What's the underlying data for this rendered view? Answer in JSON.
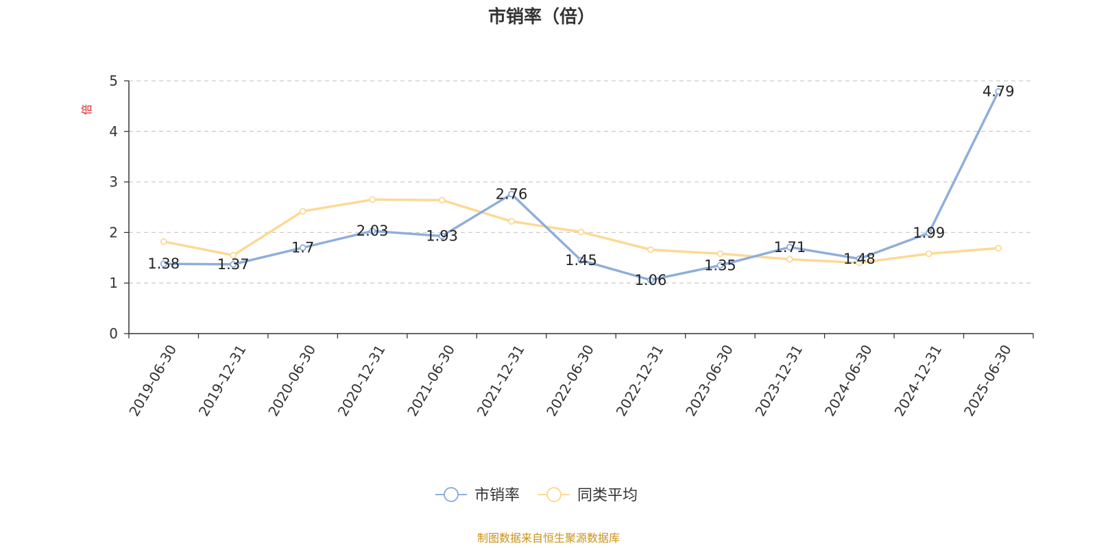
{
  "chart_data": {
    "type": "line",
    "title": "市销率（倍）",
    "ylabel": "倍",
    "xlabel": "",
    "categories": [
      "2019-06-30",
      "2019-12-31",
      "2020-06-30",
      "2020-12-31",
      "2021-06-30",
      "2021-12-31",
      "2022-06-30",
      "2022-12-31",
      "2023-06-30",
      "2023-12-31",
      "2024-06-30",
      "2024-12-31",
      "2025-06-30"
    ],
    "ylim": [
      0,
      5
    ],
    "yticks": [
      "0",
      "1",
      "2",
      "3",
      "4",
      "5"
    ],
    "grid": true,
    "legend_position": "bottom-center",
    "series": [
      {
        "name": "市销率",
        "color": "#8eaedb",
        "values": [
          1.38,
          1.37,
          1.7,
          2.03,
          1.93,
          2.76,
          1.45,
          1.06,
          1.35,
          1.71,
          1.48,
          1.99,
          4.79
        ],
        "labels": [
          "1.38",
          "1.37",
          "1.7",
          "2.03",
          "1.93",
          "2.76",
          "1.45",
          "1.06",
          "1.35",
          "1.71",
          "1.48",
          "1.99",
          "4.79"
        ]
      },
      {
        "name": "同类平均",
        "color": "#fcd994",
        "values": [
          1.82,
          1.55,
          2.42,
          2.65,
          2.64,
          2.22,
          2.01,
          1.66,
          1.58,
          1.47,
          1.4,
          1.58,
          1.69
        ]
      }
    ],
    "source": "制图数据来自恒生聚源数据库",
    "source_color": "#c8921a",
    "ylabel_color": "#e02020"
  }
}
